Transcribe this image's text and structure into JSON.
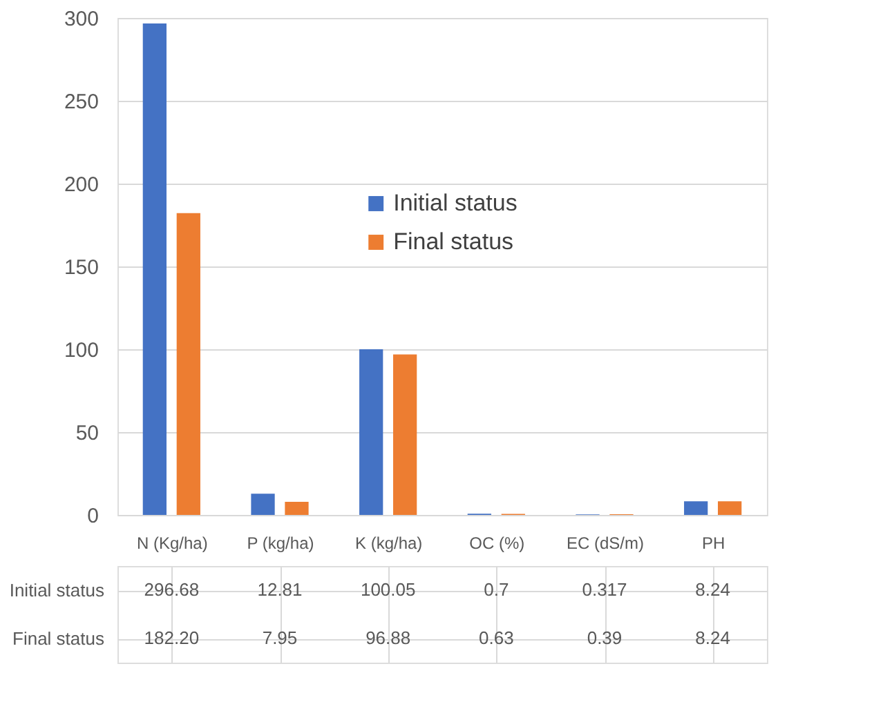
{
  "chart_data": {
    "type": "bar",
    "categories": [
      "N (Kg/ha)",
      "P (kg/ha)",
      "K (kg/ha)",
      "OC (%)",
      "EC (dS/m)",
      "PH"
    ],
    "series": [
      {
        "name": "Initial status",
        "color": "#4472c4",
        "values": [
          296.68,
          12.81,
          100.05,
          0.7,
          0.317,
          8.24
        ],
        "value_labels": [
          "296.68",
          "12.81",
          "100.05",
          "0.7",
          "0.317",
          "8.24"
        ]
      },
      {
        "name": "Final status",
        "color": "#ed7d31",
        "values": [
          182.2,
          7.95,
          96.88,
          0.63,
          0.39,
          8.24
        ],
        "value_labels": [
          "182.20",
          "7.95",
          "96.88",
          "0.63",
          "0.39",
          "8.24"
        ]
      }
    ],
    "ylim": [
      0,
      300
    ],
    "yticks": [
      0,
      50,
      100,
      150,
      200,
      250,
      300
    ],
    "grid": "y",
    "legend": "top"
  }
}
